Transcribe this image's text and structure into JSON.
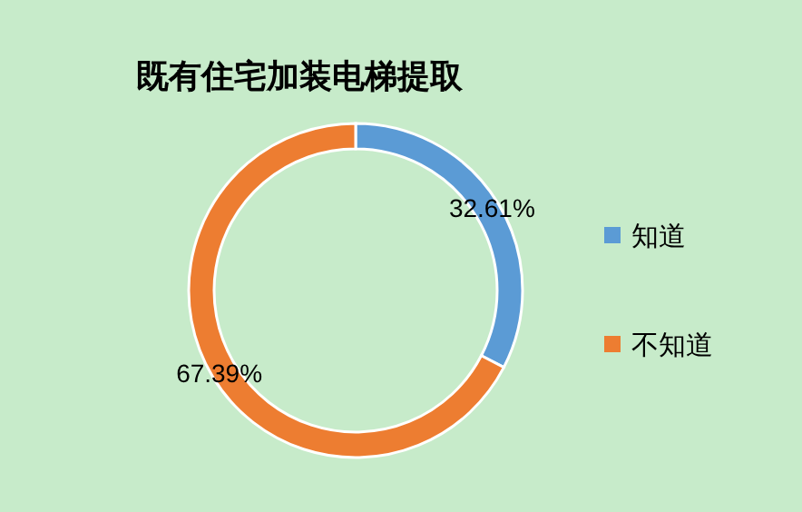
{
  "chart_data": {
    "type": "donut",
    "title": "既有住宅加装电梯提取",
    "categories": [
      "知道",
      "不知道"
    ],
    "values": [
      32.61,
      67.39
    ],
    "colors": [
      "#5b9bd5",
      "#ed7d31"
    ],
    "value_labels": [
      "32.61%",
      "67.39%"
    ],
    "legend": "right"
  }
}
